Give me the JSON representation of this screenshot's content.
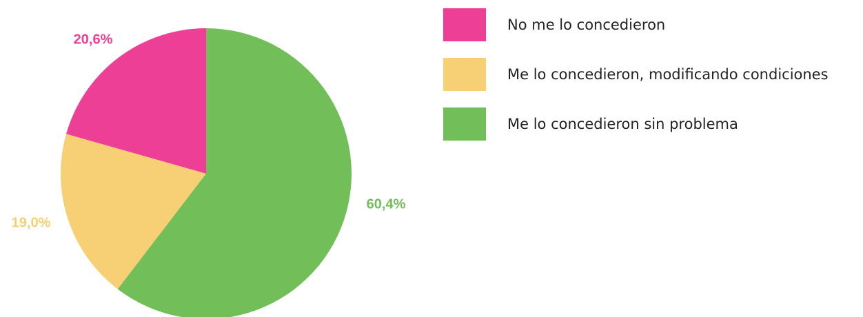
{
  "chart_data": {
    "type": "pie",
    "categories": [
      "No me lo concedieron",
      "Me lo concedieron, modificando condiciones",
      "Me lo concedieron sin problema"
    ],
    "values": [
      20.6,
      19.0,
      60.4
    ],
    "value_labels": [
      "20,6%",
      "19,0%",
      "60,4%"
    ],
    "colors": [
      "#ee3f96",
      "#f7cf74",
      "#72bf59"
    ],
    "legend": "right"
  }
}
